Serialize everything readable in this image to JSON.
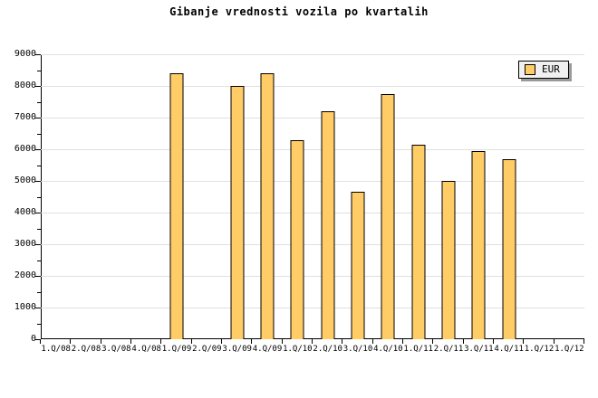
{
  "title": "Gibanje vrednosti vozila po kvartalih",
  "legend": {
    "label": "EUR",
    "swatch_color": "#FFCC66",
    "position": "top-right"
  },
  "colors": {
    "bar_fill": "#FFCC66",
    "bar_border": "#000000",
    "gridline": "#E0E0E0",
    "axis": "#000000",
    "legend_bg": "#F0F0F0",
    "legend_border": "#000000",
    "legend_shadow": "#9A9A9A",
    "background": "#FFFFFF",
    "text": "#000000"
  },
  "chart_data": {
    "type": "bar",
    "title": "Gibanje vrednosti vozila po kvartalih",
    "categories": [
      "1.Q/08",
      "2.Q/08",
      "3.Q/08",
      "4.Q/08",
      "1.Q/09",
      "2.Q/09",
      "3.Q/09",
      "4.Q/09",
      "1.Q/10",
      "2.Q/10",
      "3.Q/10",
      "4.Q/10",
      "1.Q/11",
      "2.Q/11",
      "3.Q/11",
      "4.Q/11",
      "1.Q/12",
      "1.Q/12"
    ],
    "series": [
      {
        "name": "EUR",
        "color": "#FFCC66",
        "values": [
          null,
          null,
          null,
          null,
          8400,
          null,
          8000,
          8400,
          6300,
          7200,
          4650,
          7750,
          6150,
          5000,
          5950,
          5700,
          null,
          null
        ]
      }
    ],
    "xlabel": "",
    "ylabel": "",
    "ylim": [
      0,
      9000
    ],
    "ytick_interval": 1000,
    "ytick_minor_interval": 500,
    "yticks": [
      0,
      1000,
      2000,
      3000,
      4000,
      5000,
      6000,
      7000,
      8000,
      9000
    ],
    "grid": true,
    "legend_position": "top-right"
  }
}
